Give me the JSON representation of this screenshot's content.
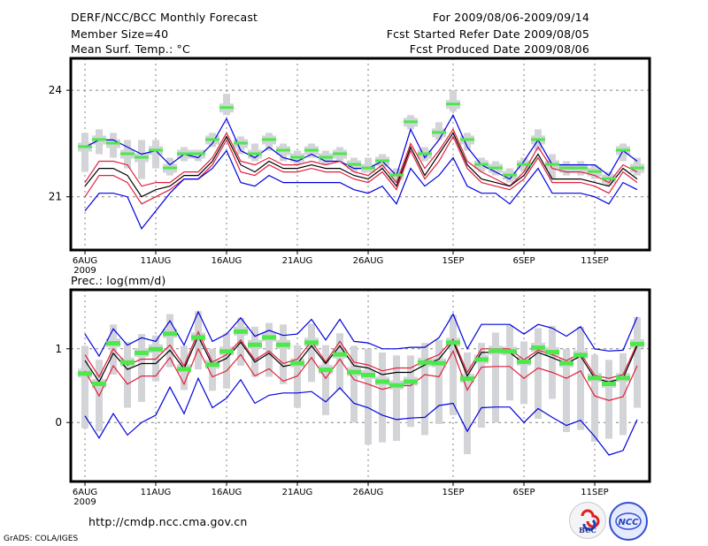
{
  "header": {
    "title": "DERF/NCC/BCC Monthly Forecast",
    "member_size": "Member Size=40",
    "panel1_label": "Mean Surf. Temp.: °C",
    "period": "For 2009/08/06-2009/09/14",
    "started": "Fcst Started Refer Date 2009/08/05",
    "produced": "Fcst Produced Date 2009/08/06"
  },
  "footer": {
    "url": "http://cmdp.ncc.cma.gov.cn",
    "grads": "GrADS: COLA/IGES",
    "logo_left": "BCC",
    "logo_right": "NCC"
  },
  "colors": {
    "mean": "#000000",
    "spread": "#e0203c",
    "minmax": "#0000e0",
    "obs_bar": "#d3d4d8",
    "obs_marker": "#4ce84c",
    "grid": "#808080"
  },
  "chart_data": [
    {
      "type": "line",
      "title": "Mean Surf. Temp.: °C",
      "xlabel": "",
      "ylabel": "°C",
      "x_ticks": [
        "6AUG",
        "11AUG",
        "16AUG",
        "21AUG",
        "26AUG",
        "1SEP",
        "6SEP",
        "11SEP"
      ],
      "x_tick_day_index": [
        0,
        5,
        10,
        15,
        20,
        26,
        31,
        36
      ],
      "x_year_label": "2009",
      "y_ticks": [
        21,
        24
      ],
      "ylim": [
        19.5,
        24.9
      ],
      "grid": true,
      "n_days": 40,
      "series": [
        {
          "name": "max",
          "color": "blue",
          "values": [
            22.4,
            22.6,
            22.6,
            22.4,
            22.2,
            22.3,
            21.9,
            22.2,
            22.1,
            22.5,
            23.2,
            22.3,
            22.1,
            22.4,
            22.1,
            22.0,
            22.2,
            22.0,
            22.0,
            21.8,
            21.8,
            22.0,
            21.6,
            22.9,
            22.1,
            22.6,
            23.3,
            22.4,
            21.9,
            21.7,
            21.5,
            22.0,
            22.6,
            21.9,
            21.9,
            21.9,
            21.9,
            21.6,
            22.3,
            22.0
          ]
        },
        {
          "name": "upper",
          "color": "red",
          "values": [
            21.4,
            22.0,
            22.0,
            21.9,
            21.3,
            21.4,
            21.4,
            21.7,
            21.7,
            22.1,
            22.8,
            22.0,
            21.9,
            22.1,
            21.9,
            21.9,
            22.0,
            21.9,
            22.0,
            21.7,
            21.6,
            21.9,
            21.4,
            22.5,
            21.8,
            22.3,
            22.9,
            22.0,
            21.7,
            21.5,
            21.3,
            21.7,
            22.4,
            21.8,
            21.7,
            21.7,
            21.6,
            21.4,
            21.9,
            21.7
          ]
        },
        {
          "name": "mean",
          "color": "black",
          "values": [
            21.3,
            21.8,
            21.8,
            21.6,
            21.0,
            21.2,
            21.3,
            21.6,
            21.6,
            22.0,
            22.7,
            21.9,
            21.7,
            22.0,
            21.8,
            21.8,
            21.9,
            21.8,
            21.8,
            21.6,
            21.5,
            21.8,
            21.3,
            22.4,
            21.6,
            22.2,
            22.8,
            21.9,
            21.5,
            21.4,
            21.3,
            21.6,
            22.2,
            21.5,
            21.5,
            21.5,
            21.4,
            21.3,
            21.8,
            21.5
          ]
        },
        {
          "name": "lower",
          "color": "red",
          "values": [
            21.0,
            21.6,
            21.6,
            21.4,
            20.8,
            21.0,
            21.2,
            21.5,
            21.5,
            21.9,
            22.6,
            21.7,
            21.6,
            21.9,
            21.7,
            21.7,
            21.8,
            21.7,
            21.7,
            21.5,
            21.4,
            21.7,
            21.2,
            22.3,
            21.5,
            22.0,
            22.7,
            21.8,
            21.4,
            21.3,
            21.2,
            21.5,
            22.1,
            21.4,
            21.4,
            21.4,
            21.3,
            21.1,
            21.7,
            21.4
          ]
        },
        {
          "name": "min",
          "color": "blue",
          "values": [
            20.6,
            21.1,
            21.1,
            21.0,
            20.1,
            20.6,
            21.1,
            21.5,
            21.5,
            21.8,
            22.3,
            21.4,
            21.3,
            21.6,
            21.4,
            21.4,
            21.4,
            21.4,
            21.4,
            21.2,
            21.1,
            21.3,
            20.8,
            21.8,
            21.3,
            21.6,
            22.1,
            21.3,
            21.1,
            21.1,
            20.8,
            21.3,
            21.8,
            21.1,
            21.1,
            21.1,
            21.0,
            20.8,
            21.4,
            21.2
          ]
        }
      ],
      "observed": {
        "marker": [
          22.4,
          22.6,
          22.5,
          22.2,
          22.1,
          22.3,
          21.8,
          22.2,
          22.2,
          22.6,
          23.5,
          22.5,
          22.2,
          22.6,
          22.3,
          22.1,
          22.3,
          22.1,
          22.2,
          21.9,
          21.8,
          22.0,
          21.6,
          23.1,
          22.2,
          22.8,
          23.6,
          22.6,
          21.9,
          21.8,
          21.6,
          21.9,
          22.6,
          21.9,
          21.8,
          21.8,
          21.7,
          21.5,
          22.3,
          21.8
        ],
        "bar_low": [
          21.7,
          22.2,
          22.1,
          21.8,
          21.5,
          21.8,
          21.6,
          22.0,
          22.0,
          22.4,
          23.3,
          22.2,
          22.0,
          22.3,
          22.0,
          21.9,
          22.1,
          21.9,
          22.0,
          21.7,
          21.7,
          21.8,
          21.4,
          22.9,
          22.0,
          22.6,
          23.4,
          22.3,
          21.7,
          21.6,
          21.4,
          21.7,
          22.3,
          21.5,
          21.6,
          21.6,
          21.5,
          21.3,
          22.0,
          21.6
        ],
        "bar_high": [
          22.8,
          22.9,
          22.8,
          22.6,
          22.6,
          22.6,
          22.1,
          22.4,
          22.3,
          22.8,
          23.9,
          22.7,
          22.5,
          22.8,
          22.5,
          22.3,
          22.5,
          22.3,
          22.4,
          22.1,
          22.1,
          22.2,
          21.8,
          23.3,
          22.4,
          23.1,
          24.0,
          22.8,
          22.1,
          22.0,
          21.8,
          22.1,
          22.9,
          22.2,
          22.0,
          22.0,
          21.9,
          21.7,
          22.5,
          22.1
        ]
      }
    },
    {
      "type": "line",
      "title": "Prec.: log(mm/d)",
      "xlabel": "",
      "ylabel": "log(mm/d)",
      "x_ticks": [
        "6AUG",
        "11AUG",
        "16AUG",
        "21AUG",
        "26AUG",
        "1SEP",
        "6SEP",
        "11SEP"
      ],
      "x_tick_day_index": [
        0,
        5,
        10,
        15,
        20,
        26,
        31,
        36
      ],
      "x_year_label": "2009",
      "y_ticks": [
        0,
        1
      ],
      "ylim": [
        -0.8,
        1.8
      ],
      "grid": true,
      "n_days": 40,
      "series": [
        {
          "name": "max",
          "color": "blue",
          "values": [
            1.2,
            0.9,
            1.27,
            1.05,
            1.15,
            1.1,
            1.38,
            1.05,
            1.5,
            1.1,
            1.2,
            1.42,
            1.17,
            1.25,
            1.18,
            1.2,
            1.4,
            1.12,
            1.4,
            1.1,
            1.08,
            1.0,
            1.0,
            1.02,
            1.02,
            1.15,
            1.47,
            1.0,
            1.33,
            1.33,
            1.33,
            1.2,
            1.33,
            1.28,
            1.17,
            1.3,
            1.0,
            0.97,
            0.98,
            1.43
          ]
        },
        {
          "name": "upper",
          "color": "red",
          "values": [
            0.92,
            0.62,
            1.0,
            0.78,
            0.86,
            0.86,
            1.05,
            0.77,
            1.23,
            0.82,
            0.92,
            1.12,
            0.85,
            0.97,
            0.8,
            0.86,
            1.1,
            0.82,
            1.1,
            0.82,
            0.78,
            0.7,
            0.74,
            0.74,
            0.84,
            0.92,
            1.13,
            0.68,
            1.0,
            1.0,
            1.0,
            0.85,
            0.98,
            0.92,
            0.84,
            0.94,
            0.64,
            0.6,
            0.65,
            1.07
          ]
        },
        {
          "name": "mean",
          "color": "black",
          "values": [
            0.84,
            0.55,
            0.94,
            0.72,
            0.8,
            0.8,
            0.98,
            0.73,
            1.17,
            0.78,
            0.87,
            1.09,
            0.82,
            0.94,
            0.76,
            0.8,
            1.04,
            0.8,
            1.04,
            0.77,
            0.74,
            0.65,
            0.68,
            0.68,
            0.78,
            0.86,
            1.1,
            0.63,
            0.95,
            0.95,
            0.95,
            0.8,
            0.95,
            0.88,
            0.8,
            0.9,
            0.6,
            0.55,
            0.6,
            1.04
          ]
        },
        {
          "name": "lower",
          "color": "red",
          "values": [
            0.7,
            0.36,
            0.77,
            0.52,
            0.63,
            0.63,
            0.88,
            0.52,
            1.0,
            0.62,
            0.7,
            0.92,
            0.63,
            0.73,
            0.56,
            0.63,
            0.88,
            0.6,
            0.86,
            0.58,
            0.52,
            0.45,
            0.5,
            0.5,
            0.65,
            0.62,
            0.97,
            0.44,
            0.75,
            0.76,
            0.76,
            0.6,
            0.74,
            0.68,
            0.6,
            0.7,
            0.36,
            0.3,
            0.35,
            0.77
          ]
        },
        {
          "name": "min",
          "color": "blue",
          "values": [
            0.09,
            -0.21,
            0.12,
            -0.17,
            0.0,
            0.1,
            0.48,
            0.12,
            0.6,
            0.2,
            0.33,
            0.58,
            0.26,
            0.37,
            0.4,
            0.4,
            0.42,
            0.28,
            0.47,
            0.26,
            0.2,
            0.1,
            0.04,
            0.06,
            0.07,
            0.23,
            0.26,
            -0.12,
            0.2,
            0.21,
            0.21,
            0.0,
            0.19,
            0.07,
            -0.04,
            0.03,
            -0.19,
            -0.44,
            -0.38,
            0.04
          ]
        }
      ],
      "observed": {
        "marker": [
          0.67,
          0.53,
          1.08,
          0.82,
          0.95,
          1.0,
          1.21,
          0.73,
          1.16,
          0.79,
          0.97,
          1.24,
          1.06,
          1.16,
          1.06,
          0.81,
          1.09,
          0.72,
          0.93,
          0.69,
          0.65,
          0.56,
          0.51,
          0.56,
          0.82,
          0.81,
          1.09,
          0.6,
          0.86,
          0.98,
          0.97,
          0.83,
          1.02,
          0.96,
          0.81,
          0.92,
          0.61,
          0.53,
          0.61,
          1.07
        ],
        "bar_low": [
          -0.08,
          -0.12,
          0.65,
          0.2,
          0.28,
          0.56,
          0.75,
          0.44,
          0.72,
          0.43,
          0.46,
          0.77,
          0.62,
          0.62,
          0.52,
          0.2,
          0.55,
          0.1,
          0.44,
          0.0,
          -0.3,
          -0.27,
          -0.25,
          -0.06,
          -0.17,
          -0.02,
          0.1,
          -0.43,
          -0.07,
          0.0,
          0.3,
          0.25,
          0.05,
          0.32,
          -0.13,
          -0.1,
          -0.26,
          -0.22,
          -0.17,
          0.2
        ],
        "bar_high": [
          1.04,
          0.85,
          1.33,
          1.09,
          1.2,
          1.18,
          1.47,
          1.04,
          1.51,
          1.0,
          1.21,
          1.42,
          1.3,
          1.35,
          1.33,
          1.05,
          1.34,
          1.05,
          1.21,
          1.04,
          1.0,
          0.95,
          0.91,
          0.91,
          1.08,
          1.12,
          1.46,
          0.95,
          1.08,
          1.22,
          1.32,
          1.1,
          1.28,
          1.31,
          1.0,
          1.3,
          0.92,
          0.85,
          0.94,
          1.43
        ]
      }
    }
  ]
}
